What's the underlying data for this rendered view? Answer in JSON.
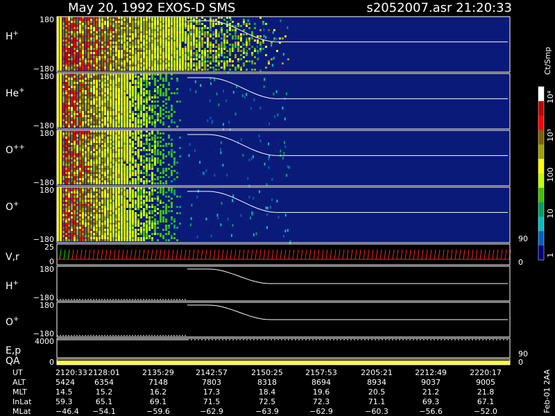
{
  "header": {
    "title": "May 20, 1992    EXOS-D SMS",
    "file_time": "s2052007.asr  21:20:33"
  },
  "colorbar": {
    "unit": "Ct/Smp",
    "ticks": [
      "10⁴",
      "10³",
      "100",
      "10",
      "1"
    ],
    "colors": [
      "#ffffff",
      "#c00000",
      "#ff0000",
      "#806000",
      "#a0a000",
      "#ffff00",
      "#c0ff00",
      "#40c000",
      "#00a060",
      "#00c0c0",
      "#0060c0",
      "#000080"
    ]
  },
  "chart_data": {
    "type": "heatmap",
    "title": "May 20, 1992    EXOS-D SMS",
    "x_ticks": [
      "2120:33",
      "2128:01",
      "2135:29",
      "2142:57",
      "2150:25",
      "2157:53",
      "2205:21",
      "2212:49",
      "2220:17"
    ],
    "panels": [
      {
        "name": "spec-h",
        "label": "H",
        "sup": "+",
        "ytop": "180",
        "ybot": "−180",
        "kind": "spectrogram",
        "activity": 0.45,
        "right": ""
      },
      {
        "name": "spec-he",
        "label": "He",
        "sup": "+",
        "ytop": "180",
        "ybot": "−180",
        "kind": "spectrogram",
        "activity": 0.3,
        "right": ""
      },
      {
        "name": "spec-opp",
        "label": "O",
        "sup": "++",
        "ytop": "180",
        "ybot": "−180",
        "kind": "spectrogram",
        "activity": 0.32,
        "right": ""
      },
      {
        "name": "spec-o",
        "label": "O",
        "sup": "+",
        "ytop": "180",
        "ybot": "−180",
        "kind": "spectrogram",
        "activity": 0.35,
        "right": "90"
      },
      {
        "name": "velocity",
        "label": "V,r",
        "sup": "",
        "ytop": "25",
        "ybot": "0",
        "kind": "vr",
        "right": "0"
      },
      {
        "name": "pitch-h",
        "label": "H",
        "sup": "+",
        "ytop": "180",
        "ybot": "−180",
        "kind": "blank",
        "right": ""
      },
      {
        "name": "pitch-o",
        "label": "O",
        "sup": "+",
        "ytop": "180",
        "ybot": "−180",
        "kind": "blank",
        "right": ""
      },
      {
        "name": "energy",
        "label": "E,p",
        "sup": "",
        "ytop": "4000",
        "ybot": "",
        "kind": "ep",
        "right": "90"
      },
      {
        "name": "quality",
        "label": "QA",
        "sup": "",
        "ytop": "0",
        "ybot": "",
        "kind": "qa",
        "right": "0"
      }
    ],
    "table": {
      "rows": [
        {
          "name": "UT",
          "values": [
            "2120:33",
            "2128:01",
            "2135:29",
            "2142:57",
            "2150:25",
            "2157:53",
            "2205:21",
            "2212:49",
            "2220:17"
          ]
        },
        {
          "name": "ALT",
          "values": [
            "5424",
            "6354",
            "7148",
            "7803",
            "8318",
            "8694",
            "8934",
            "9037",
            "9005"
          ]
        },
        {
          "name": "MLT",
          "values": [
            "14.5",
            "15.2",
            "16.2",
            "17.3",
            "18.4",
            "19.6",
            "20.5",
            "21.2",
            "21.8"
          ]
        },
        {
          "name": "InLat",
          "values": [
            "59.3",
            "65.1",
            "69.1",
            "71.5",
            "72.5",
            "72.3",
            "71.1",
            "69.3",
            "67.1"
          ]
        },
        {
          "name": "MLat",
          "values": [
            "−46.4",
            "−54.1",
            "−59.6",
            "−62.9",
            "−63.9",
            "−62.9",
            "−60.3",
            "−56.6",
            "−52.0"
          ]
        }
      ]
    }
  },
  "footer_stamp": "Feb-01 2AA"
}
